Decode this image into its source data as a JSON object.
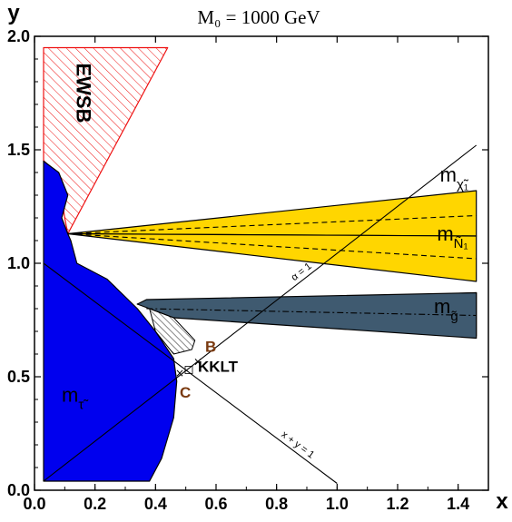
{
  "chart_data": {
    "type": "area",
    "title": "M₀ = 1000 GeV",
    "xlabel": "x",
    "ylabel": "y",
    "xlim": [
      0.0,
      1.5
    ],
    "ylim": [
      0.0,
      2.0
    ],
    "xticks": [
      "0.0",
      "0.2",
      "0.4",
      "0.6",
      "0.8",
      "1.0",
      "1.2",
      "1.4"
    ],
    "xtick_values": [
      0.0,
      0.2,
      0.4,
      0.6,
      0.8,
      1.0,
      1.2,
      1.4
    ],
    "yticks": [
      "0.0",
      "0.5",
      "1.0",
      "1.5",
      "2.0"
    ],
    "ytick_values": [
      0.0,
      0.5,
      1.0,
      1.5,
      2.0
    ],
    "grid": false,
    "regions": [
      {
        "label": "EWSB",
        "style": "red-hatched",
        "color": "#ee1111",
        "polygon": [
          [
            0.03,
            1.95
          ],
          [
            0.44,
            1.95
          ],
          [
            0.11,
            1.13
          ],
          [
            0.1,
            1.2
          ],
          [
            0.08,
            1.38
          ],
          [
            0.03,
            1.45
          ]
        ]
      },
      {
        "label": "m",
        "sub": "τ̃",
        "style": "filled",
        "color": "#0000ee",
        "polygon": [
          [
            0.03,
            0.04
          ],
          [
            0.38,
            0.04
          ],
          [
            0.42,
            0.14
          ],
          [
            0.46,
            0.32
          ],
          [
            0.47,
            0.48
          ],
          [
            0.46,
            0.58
          ],
          [
            0.4,
            0.7
          ],
          [
            0.34,
            0.8
          ],
          [
            0.24,
            0.93
          ],
          [
            0.14,
            1.0
          ],
          [
            0.12,
            1.1
          ],
          [
            0.11,
            1.13
          ],
          [
            0.09,
            1.2
          ],
          [
            0.11,
            1.3
          ],
          [
            0.08,
            1.4
          ],
          [
            0.03,
            1.45
          ]
        ]
      },
      {
        "label": "m",
        "sub": "g̃",
        "style": "filled",
        "color": "#ffd600",
        "polygon": [
          [
            0.34,
            0.82
          ],
          [
            1.46,
            0.87
          ],
          [
            1.46,
            0.68
          ],
          [
            0.34,
            0.82
          ]
        ]
      },
      {
        "label": "",
        "style": "filled",
        "color": "#3f5a70",
        "polygon": [
          [
            0.34,
            0.82
          ],
          [
            0.37,
            0.84
          ],
          [
            1.46,
            0.87
          ],
          [
            1.46,
            0.67
          ],
          [
            0.46,
            0.76
          ],
          [
            0.38,
            0.8
          ]
        ]
      },
      {
        "label": "",
        "style": "black-hatched",
        "color": "#222222",
        "polygon": [
          [
            0.38,
            0.8
          ],
          [
            0.46,
            0.76
          ],
          [
            0.53,
            0.66
          ],
          [
            0.52,
            0.62
          ],
          [
            0.46,
            0.6
          ],
          [
            0.4,
            0.7
          ]
        ]
      },
      {
        "label": "m",
        "sub": "χ̃₁",
        "style": "band-upper",
        "color": "#ffd600",
        "polygon": [
          [
            0.11,
            1.13
          ],
          [
            1.46,
            1.32
          ],
          [
            1.46,
            1.12
          ],
          [
            0.11,
            1.13
          ]
        ]
      },
      {
        "label": "m",
        "sub": "Ñ₁",
        "style": "band-lower",
        "color": "#ffd600",
        "polygon": [
          [
            0.11,
            1.13
          ],
          [
            1.46,
            1.12
          ],
          [
            1.46,
            0.92
          ],
          [
            0.11,
            1.13
          ]
        ]
      }
    ],
    "lines": [
      {
        "label": "α = 1",
        "style": "solid",
        "x": [
          0.03,
          1.46
        ],
        "y": [
          0.04,
          1.52
        ]
      },
      {
        "label": "x + y = 1",
        "style": "solid",
        "x": [
          0.03,
          1.0
        ],
        "y": [
          1.0,
          0.03
        ]
      },
      {
        "label": "",
        "style": "dashed",
        "x": [
          0.11,
          1.46
        ],
        "y": [
          1.13,
          1.21
        ]
      },
      {
        "label": "",
        "style": "dashed",
        "x": [
          0.11,
          1.46
        ],
        "y": [
          1.13,
          1.02
        ]
      },
      {
        "label": "",
        "style": "dashdot",
        "x": [
          0.37,
          1.46
        ],
        "y": [
          0.8,
          0.77
        ]
      }
    ],
    "points": [
      {
        "label": "B",
        "x": 0.54,
        "y": 0.57,
        "color": "#7a3a10"
      },
      {
        "label": "C",
        "x": 0.48,
        "y": 0.52,
        "color": "#7a3a10"
      },
      {
        "label": "KKLT",
        "x": 0.51,
        "y": 0.53,
        "color": "#000000"
      }
    ]
  }
}
